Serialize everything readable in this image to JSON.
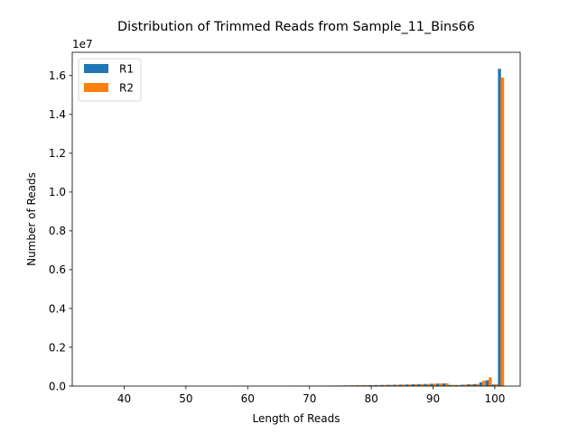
{
  "chart_data": {
    "type": "bar",
    "title": "Distribution of Trimmed Reads from Sample_11_Bins66",
    "xlabel": "Length of Reads",
    "ylabel": "Number of Reads",
    "y_scale_label": "1e7",
    "y_scale": 10000000,
    "xlim": [
      31.6,
      104.1
    ],
    "ylim": [
      0,
      17200000
    ],
    "xticks": [
      40,
      50,
      60,
      70,
      80,
      90,
      100
    ],
    "yticks": [
      0,
      0.2,
      0.4,
      0.6,
      0.8,
      1.0,
      1.2,
      1.4,
      1.6
    ],
    "ytick_labels": [
      "0.0",
      "0.2",
      "0.4",
      "0.6",
      "0.8",
      "1.0",
      "1.2",
      "1.4",
      "1.6"
    ],
    "grid": false,
    "legend_position": "top-left",
    "bar_width": 0.5,
    "lengths": [
      35,
      36,
      37,
      38,
      39,
      40,
      41,
      42,
      43,
      44,
      45,
      46,
      47,
      48,
      49,
      50,
      51,
      52,
      53,
      54,
      55,
      56,
      57,
      58,
      59,
      60,
      61,
      62,
      63,
      64,
      65,
      66,
      67,
      68,
      69,
      70,
      71,
      72,
      73,
      74,
      75,
      76,
      77,
      78,
      79,
      80,
      81,
      82,
      83,
      84,
      85,
      86,
      87,
      88,
      89,
      90,
      91,
      92,
      93,
      94,
      95,
      96,
      97,
      98,
      99,
      100,
      101
    ],
    "series": [
      {
        "name": "R1",
        "color": "#1f77b4",
        "values": [
          1000,
          1100,
          1200,
          1300,
          1500,
          1600,
          1800,
          2000,
          2200,
          2400,
          2600,
          2800,
          3000,
          3300,
          3600,
          3900,
          4200,
          4600,
          5000,
          5500,
          6000,
          6500,
          7000,
          7600,
          8200,
          9000,
          9800,
          10600,
          11500,
          12500,
          13600,
          14800,
          16000,
          17500,
          19000,
          20500,
          22500,
          24500,
          26500,
          29000,
          31500,
          34500,
          37500,
          41000,
          45000,
          49000,
          53500,
          58500,
          64000,
          70000,
          76000,
          83000,
          91000,
          99000,
          108000,
          118000,
          129000,
          141000,
          60000,
          55000,
          70000,
          90000,
          100000,
          200000,
          300000,
          80000,
          16350000
        ]
      },
      {
        "name": "R2",
        "color": "#ff7f0e",
        "values": [
          1100,
          1200,
          1300,
          1400,
          1600,
          1700,
          1900,
          2100,
          2300,
          2500,
          2700,
          3000,
          3200,
          3500,
          3800,
          4100,
          4500,
          4900,
          5300,
          5800,
          6300,
          6900,
          7500,
          8100,
          8800,
          9600,
          10400,
          11300,
          12300,
          13400,
          14500,
          15800,
          17200,
          18700,
          20300,
          22000,
          24000,
          26000,
          28300,
          30800,
          33500,
          36500,
          39800,
          43400,
          47300,
          51500,
          56000,
          61000,
          66500,
          72500,
          79000,
          86000,
          94000,
          102000,
          111000,
          121000,
          132000,
          144000,
          65000,
          60000,
          80000,
          95000,
          110000,
          280000,
          450000,
          100000,
          15900000
        ]
      }
    ]
  }
}
